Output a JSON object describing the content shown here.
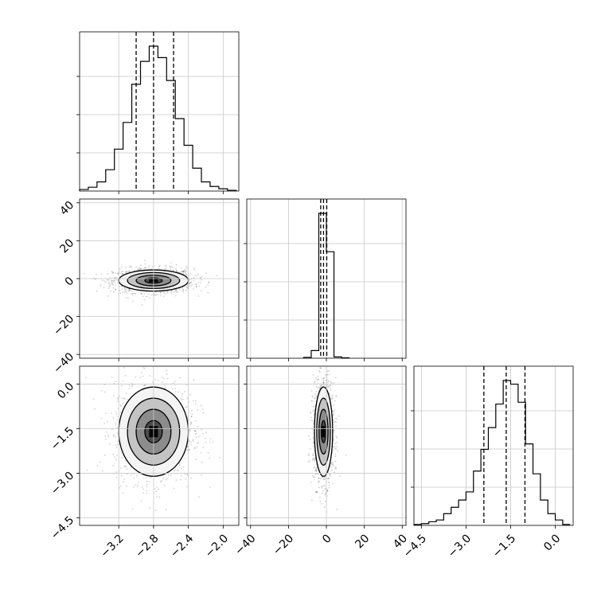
{
  "chart_data": {
    "type": "corner",
    "parameters": [
      {
        "range": [
          -3.65,
          -1.82
        ],
        "ticks": [
          -3.2,
          -2.8,
          -2.4,
          -2.0
        ],
        "tick_labels": [
          "−3.2",
          "−2.8",
          "−2.4",
          "−2.0"
        ],
        "quantiles": [
          -3.0,
          -2.8,
          -2.57
        ]
      },
      {
        "range": [
          -42,
          42
        ],
        "ticks": [
          -40,
          -20,
          0,
          20,
          40
        ],
        "tick_labels": [
          "−40",
          "−20",
          "0",
          "20",
          "40"
        ],
        "quantiles": [
          -3.0,
          -1.5,
          0.2
        ]
      },
      {
        "range": [
          -4.75,
          0.6
        ],
        "ticks": [
          -4.5,
          -3.0,
          -1.5,
          0.0
        ],
        "tick_labels": [
          "−4.5",
          "−3.0",
          "−1.5",
          "0.0"
        ],
        "quantiles": [
          -2.4,
          -1.65,
          -1.02
        ]
      }
    ],
    "histograms": [
      {
        "param": 0,
        "bins": [
          -3.65,
          -3.55,
          -3.45,
          -3.35,
          -3.25,
          -3.15,
          -3.05,
          -2.95,
          -2.85,
          -2.75,
          -2.65,
          -2.55,
          -2.45,
          -2.35,
          -2.25,
          -2.15,
          -2.05,
          -1.95,
          -1.85
        ],
        "counts": [
          2,
          5,
          12,
          28,
          55,
          90,
          140,
          170,
          190,
          175,
          145,
          95,
          60,
          30,
          12,
          6,
          3,
          1
        ]
      },
      {
        "param": 1,
        "bins": [
          -12,
          -8,
          -4,
          0,
          4,
          8,
          12
        ],
        "counts": [
          2,
          18,
          340,
          250,
          3,
          1
        ]
      },
      {
        "param": 2,
        "bins": [
          -4.75,
          -4.5,
          -4.25,
          -4.0,
          -3.75,
          -3.5,
          -3.25,
          -3.0,
          -2.75,
          -2.5,
          -2.25,
          -2.0,
          -1.75,
          -1.5,
          -1.25,
          -1.0,
          -0.75,
          -0.5,
          -0.25,
          0.0,
          0.25,
          0.5
        ],
        "counts": [
          1,
          2,
          4,
          6,
          13,
          20,
          28,
          37,
          60,
          84,
          108,
          134,
          160,
          156,
          136,
          90,
          57,
          28,
          13,
          6,
          1,
          1
        ]
      }
    ],
    "pairs": [
      {
        "x": 0,
        "y": 1,
        "center": [
          -2.8,
          -1.0
        ],
        "sigma": [
          0.2,
          2.8
        ]
      },
      {
        "x": 0,
        "y": 2,
        "center": [
          -2.8,
          -1.6
        ],
        "sigma": [
          0.2,
          0.75
        ]
      },
      {
        "x": 1,
        "y": 2,
        "center": [
          -1.5,
          -1.6
        ],
        "sigma": [
          2.4,
          0.75
        ]
      }
    ],
    "grid": true
  }
}
